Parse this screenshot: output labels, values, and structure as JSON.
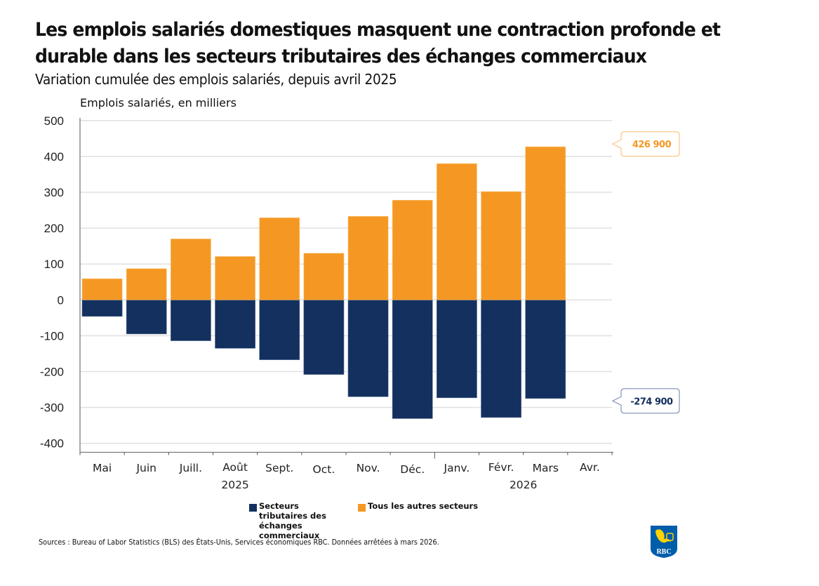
{
  "header": {
    "title_lines": [
      "Les emplois salariés domestiques masquent une contraction profonde et",
      "durable dans les secteurs tributaires des échanges commerciaux"
    ],
    "subtitle": "Variation cumulée des emplois salariés, depuis avril 2025"
  },
  "chart_data": {
    "type": "bar",
    "stacked": true,
    "title": "Les emplois salariés domestiques masquent une contraction profonde et durable dans les secteurs tributaires des échanges commerciaux",
    "subtitle": "Variation cumulée des emplois salariés, depuis avril 2025",
    "xlabel": "",
    "ylabel": "Emplois salariés, en milliers",
    "categories": [
      "Mai",
      "Juin",
      "Juill.",
      "Août",
      "Sept.",
      "Oct.",
      "Nov.",
      "Déc.",
      "Janv.",
      "Févr.",
      "Mars",
      "Avr."
    ],
    "year_labels": [
      {
        "label": "2025",
        "position": "under Août"
      },
      {
        "label": "2026",
        "position": "under Févr.–Mars"
      }
    ],
    "series": [
      {
        "name": "Secteurs tributaires des échanges commerciaux",
        "color": "#13305f",
        "values": [
          -46,
          -95,
          -114,
          -135,
          -167,
          -208,
          -270,
          -331,
          -273,
          -328,
          -274.9,
          null
        ]
      },
      {
        "name": "Tous les autres secteurs",
        "color": "#f59823",
        "values": [
          59,
          87,
          170,
          121,
          229,
          130,
          233,
          278,
          380,
          302,
          426.9,
          null
        ]
      }
    ],
    "ylim": [
      -424,
      510
    ],
    "yticks": [
      500,
      400,
      300,
      200,
      100,
      0,
      -100,
      -200,
      -300,
      -400
    ],
    "ytick_labels": [
      "500",
      "400",
      "300",
      "200",
      "100",
      "0",
      "-100",
      "-200",
      "-300",
      "-400"
    ],
    "grid": true,
    "legend_position": "bottom-center",
    "annotations": [
      {
        "text": "426 900",
        "series": "Tous les autres secteurs",
        "category": "Mars",
        "value": 426.9,
        "color": "#f59823"
      },
      {
        "text": "-274 900",
        "series": "Secteurs tributaires des échanges commerciaux",
        "category": "Mars",
        "value": -274.9,
        "color": "#13305f"
      }
    ]
  },
  "legend": {
    "items": [
      {
        "label": "Secteurs tributaires des échanges commerciaux",
        "color": "#13305f"
      },
      {
        "label": "Tous les autres secteurs",
        "color": "#f59823"
      }
    ]
  },
  "footer": {
    "source": "Sources : Bureau of Labor Statistics (BLS) des États-Unis, Services économiques RBC. Données arrêtées à mars 2026.",
    "logo_text": "RBC",
    "logo_colors": {
      "blue": "#005daa",
      "gold": "#ffd200"
    }
  }
}
